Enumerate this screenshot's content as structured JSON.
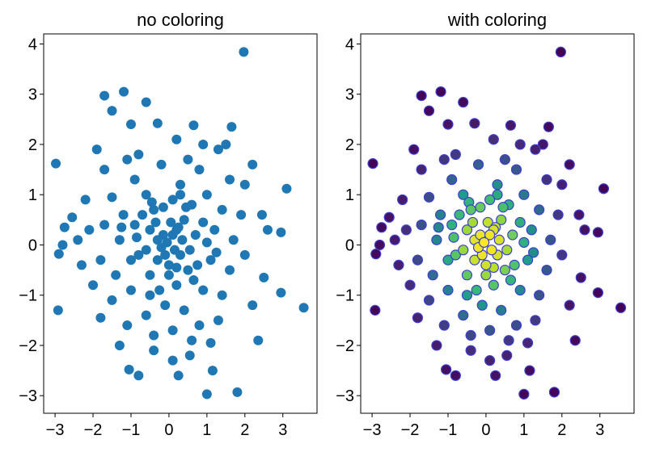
{
  "chart_data": [
    {
      "type": "scatter",
      "title": "no coloring",
      "xlabel": "",
      "ylabel": "",
      "xlim": [
        -3.3,
        3.9
      ],
      "ylim": [
        -3.35,
        4.2
      ],
      "xticks": [
        -3,
        -2,
        -1,
        0,
        1,
        2,
        3
      ],
      "xtick_labels": [
        "−3",
        "−2",
        "−1",
        "0",
        "1",
        "2",
        "3"
      ],
      "yticks": [
        -3,
        -2,
        -1,
        0,
        1,
        2,
        3,
        4
      ],
      "ytick_labels": [
        "−3",
        "−2",
        "−1",
        "0",
        "1",
        "2",
        "3",
        "4"
      ],
      "grid": false,
      "color_mode": "single",
      "color": "#1f77b4"
    },
    {
      "type": "scatter",
      "title": "with coloring",
      "xlabel": "",
      "ylabel": "",
      "xlim": [
        -3.3,
        3.9
      ],
      "ylim": [
        -3.35,
        4.2
      ],
      "xticks": [
        -3,
        -2,
        -1,
        0,
        1,
        2,
        3
      ],
      "xtick_labels": [
        "−3",
        "−2",
        "−1",
        "0",
        "1",
        "2",
        "3"
      ],
      "yticks": [
        -3,
        -2,
        -1,
        0,
        1,
        2,
        3,
        4
      ],
      "ytick_labels": [
        "−3",
        "−2",
        "−1",
        "0",
        "1",
        "2",
        "3",
        "4"
      ],
      "grid": false,
      "color_mode": "density",
      "colormap": "viridis",
      "edge_color": "#3b3fcf"
    }
  ],
  "points": [
    [
      1.97,
      3.84
    ],
    [
      -2.98,
      1.62
    ],
    [
      -2.92,
      -1.3
    ],
    [
      3.55,
      -1.25
    ],
    [
      3.1,
      1.12
    ],
    [
      -1.19,
      3.05
    ],
    [
      -1.7,
      2.97
    ],
    [
      -0.6,
      2.84
    ],
    [
      -1.5,
      2.67
    ],
    [
      1.0,
      -2.97
    ],
    [
      1.8,
      -2.93
    ],
    [
      -0.8,
      -2.6
    ],
    [
      -1.05,
      -2.48
    ],
    [
      0.25,
      -2.6
    ],
    [
      1.15,
      -2.5
    ],
    [
      2.35,
      -1.9
    ],
    [
      2.2,
      1.6
    ],
    [
      2.95,
      0.25
    ],
    [
      2.95,
      -0.95
    ],
    [
      -2.9,
      -0.18
    ],
    [
      -2.75,
      0.35
    ],
    [
      -2.8,
      0.0
    ],
    [
      -2.4,
      0.1
    ],
    [
      -1.9,
      1.9
    ],
    [
      1.65,
      2.35
    ],
    [
      0.65,
      2.38
    ],
    [
      -1.0,
      2.4
    ],
    [
      -0.3,
      2.42
    ],
    [
      -1.3,
      -2.0
    ],
    [
      -0.4,
      -2.1
    ],
    [
      0.1,
      -2.3
    ],
    [
      0.55,
      -2.2
    ],
    [
      1.1,
      -1.95
    ],
    [
      -2.2,
      0.9
    ],
    [
      2.45,
      0.6
    ],
    [
      2.6,
      0.3
    ],
    [
      -2.55,
      0.55
    ],
    [
      -2.3,
      -0.4
    ],
    [
      2.5,
      -0.65
    ],
    [
      2.2,
      -1.2
    ],
    [
      -1.8,
      -1.45
    ],
    [
      1.5,
      2.0
    ],
    [
      2.0,
      1.2
    ],
    [
      -1.7,
      1.5
    ],
    [
      0.2,
      2.1
    ],
    [
      1.3,
      1.9
    ],
    [
      -0.9,
      1.3
    ],
    [
      0.8,
      1.5
    ],
    [
      1.6,
      1.3
    ],
    [
      -1.5,
      0.95
    ],
    [
      -1.2,
      0.6
    ],
    [
      -0.6,
      1.0
    ],
    [
      0.3,
      1.2
    ],
    [
      1.0,
      1.0
    ],
    [
      1.4,
      0.7
    ],
    [
      -1.7,
      0.4
    ],
    [
      -1.3,
      0.1
    ],
    [
      -0.9,
      0.4
    ],
    [
      -0.4,
      0.7
    ],
    [
      0.1,
      0.9
    ],
    [
      0.6,
      0.8
    ],
    [
      1.2,
      0.3
    ],
    [
      1.7,
      0.1
    ],
    [
      -1.8,
      -0.3
    ],
    [
      -1.4,
      -0.6
    ],
    [
      -0.8,
      -0.2
    ],
    [
      -0.3,
      0.1
    ],
    [
      0.2,
      0.3
    ],
    [
      0.7,
      0.2
    ],
    [
      1.1,
      -0.3
    ],
    [
      1.6,
      -0.5
    ],
    [
      -1.5,
      -1.1
    ],
    [
      -1.0,
      -0.9
    ],
    [
      -0.5,
      -0.6
    ],
    [
      0.0,
      -0.4
    ],
    [
      0.5,
      -0.5
    ],
    [
      0.9,
      -0.9
    ],
    [
      1.4,
      -1.0
    ],
    [
      -1.1,
      -1.6
    ],
    [
      -0.6,
      -1.4
    ],
    [
      -0.1,
      -1.2
    ],
    [
      0.4,
      -1.3
    ],
    [
      0.8,
      -1.6
    ],
    [
      1.3,
      -1.5
    ],
    [
      -0.4,
      -1.8
    ],
    [
      0.1,
      -1.7
    ],
    [
      0.6,
      -1.9
    ],
    [
      -2.0,
      -0.8
    ],
    [
      -2.1,
      0.3
    ],
    [
      2.0,
      -0.2
    ],
    [
      1.9,
      0.6
    ],
    [
      -0.2,
      1.6
    ],
    [
      0.5,
      1.7
    ],
    [
      -0.8,
      1.8
    ],
    [
      -1.1,
      1.7
    ],
    [
      0.9,
      2.0
    ],
    [
      -0.05,
      0.05
    ],
    [
      0.15,
      -0.1
    ],
    [
      -0.15,
      0.2
    ],
    [
      0.3,
      -0.2
    ],
    [
      -0.3,
      -0.3
    ],
    [
      0.05,
      0.45
    ],
    [
      0.4,
      0.5
    ],
    [
      -0.5,
      0.3
    ],
    [
      0.35,
      0.1
    ],
    [
      -0.2,
      -0.05
    ],
    [
      0.1,
      0.2
    ],
    [
      -0.1,
      -0.2
    ],
    [
      0.25,
      0.35
    ],
    [
      -0.35,
      0.45
    ],
    [
      0.55,
      -0.1
    ],
    [
      -0.6,
      -0.1
    ],
    [
      0.0,
      -0.6
    ],
    [
      0.2,
      -0.8
    ],
    [
      -0.25,
      -0.9
    ],
    [
      0.75,
      -0.4
    ],
    [
      -0.7,
      0.6
    ],
    [
      0.45,
      0.75
    ],
    [
      -0.45,
      0.85
    ],
    [
      0.9,
      0.45
    ],
    [
      -1.0,
      -0.3
    ],
    [
      1.0,
      0.05
    ],
    [
      -0.85,
      0.15
    ],
    [
      0.65,
      -0.7
    ],
    [
      -0.15,
      0.75
    ],
    [
      0.2,
      -0.45
    ],
    [
      -1.25,
      0.35
    ],
    [
      1.25,
      -0.15
    ],
    [
      -0.5,
      -1.0
    ],
    [
      0.3,
      1.0
    ]
  ]
}
